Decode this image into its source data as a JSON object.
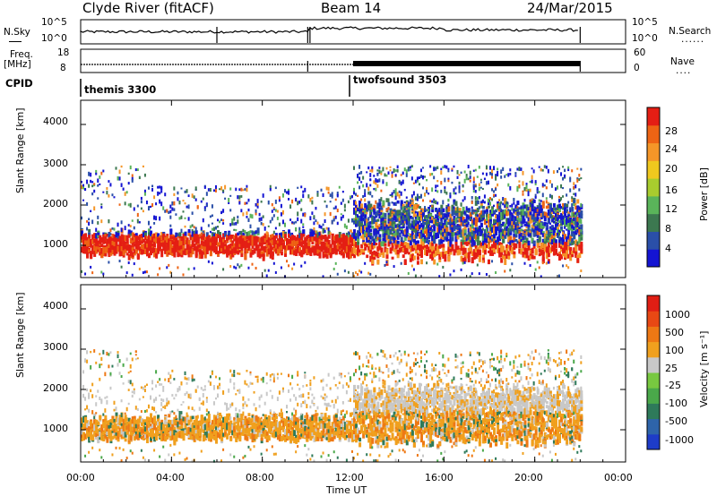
{
  "header": {
    "site": "Clyde River (fitACF)",
    "beam": "Beam 14",
    "date": "24/Mar/2015"
  },
  "strips": {
    "nsky_label": "N.Sky",
    "nsearch_label": "N.Search",
    "noise_ticks_left": [
      "10^5",
      "10^0"
    ],
    "noise_ticks_right": [
      "10^5",
      "10^0"
    ],
    "freq_label": "Freq.",
    "freq_unit": "[MHz]",
    "freq_ticks": [
      "18",
      "8"
    ],
    "nave_label": "Nave",
    "nave_ticks": [
      "60",
      "0"
    ],
    "cpid_label": "CPID",
    "cpid_modes": [
      {
        "name": "themis 3300",
        "start_hour": 0,
        "end_hour": 12
      },
      {
        "name": "twofsound 3503",
        "start_hour": 12,
        "end_hour": 22
      }
    ]
  },
  "chart_data": [
    {
      "type": "heatmap",
      "name": "power-panel",
      "xlabel": "",
      "ylabel": "Slant Range [km]",
      "xlim": [
        0,
        24
      ],
      "ylim": [
        200,
        4600
      ],
      "yticks": [
        "1000",
        "2000",
        "3000",
        "4000"
      ],
      "colorbar": {
        "label": "Power [dB]",
        "ticks": [
          "28",
          "24",
          "20",
          "16",
          "12",
          "8",
          "4"
        ],
        "colors": [
          "#1414d2",
          "#2a4fa8",
          "#3c7850",
          "#5ab45a",
          "#a8cc2e",
          "#f0c81e",
          "#f59628",
          "#ee6414",
          "#e41e14"
        ]
      },
      "data_extent_hours": [
        0,
        22
      ],
      "main_band_km": [
        800,
        1300
      ],
      "max_range_km": 3200
    },
    {
      "type": "heatmap",
      "name": "velocity-panel",
      "xlabel": "Time UT",
      "ylabel": "Slant Range [km]",
      "xlim": [
        0,
        24
      ],
      "ylim": [
        200,
        4600
      ],
      "xticks": [
        "00:00",
        "04:00",
        "08:00",
        "12:00",
        "16:00",
        "20:00",
        "00:00"
      ],
      "yticks": [
        "1000",
        "2000",
        "3000",
        "4000"
      ],
      "colorbar": {
        "label": "Velocity [m s⁻¹]",
        "ticks": [
          "1000",
          "500",
          "100",
          "25",
          "-25",
          "-100",
          "-500",
          "-1000"
        ],
        "colors": [
          "#1e3cc8",
          "#2e64aa",
          "#2e7a5a",
          "#4aa84a",
          "#78c840",
          "#c8c8c8",
          "#f0a01e",
          "#ee7814",
          "#e84814",
          "#e01e14"
        ]
      },
      "data_extent_hours": [
        0,
        22
      ]
    }
  ],
  "legend": {
    "dots": "......",
    "dots_short": "...."
  }
}
